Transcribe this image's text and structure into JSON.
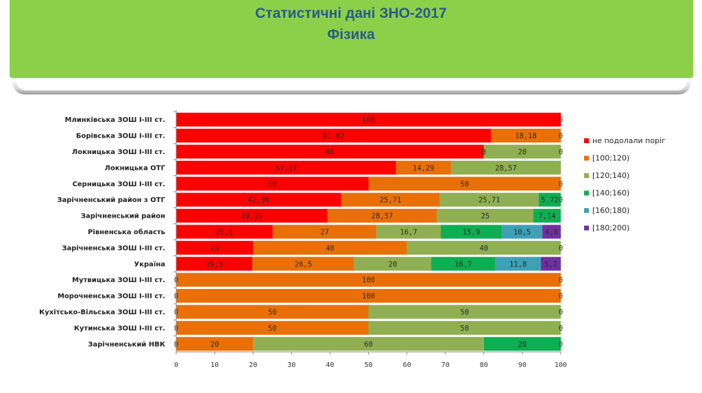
{
  "header": {
    "title_line1": "Статистичні дані  ЗНО-2017",
    "title_line2": "Фізика"
  },
  "chart_data": {
    "type": "bar",
    "orientation": "horizontal",
    "stacked": true,
    "title": "",
    "xlabel": "",
    "ylabel": "",
    "xlim": [
      0,
      100
    ],
    "x_ticks": [
      "0",
      "10",
      "20",
      "30",
      "40",
      "50",
      "60",
      "70",
      "80",
      "90",
      "100"
    ],
    "grid": false,
    "legend_position": "right",
    "categories": [
      "Млинківська  ЗОШ І-ІІІ ст.",
      "Борівська  ЗОШ І-ІІІ ст.",
      "Локницька  ЗОШ І-ІІІ ст.",
      "Локницька  ОТГ",
      "Серницька ЗОШ І-ІІІ ст.",
      "Зарічненський  район з ОТГ",
      "Зарічненський  район",
      "Рівненська  область",
      "Зарічненська  ЗОШ І-ІІІ ст.",
      "Україна",
      "Мутвицька  ЗОШ І-ІІІ ст.",
      "Морочненська  ЗОШ І-ІІІ ст.",
      "Кухітсько-Вільська  ЗОШ І-ІІІ ст.",
      "Кутинська  ЗОШ І-ІІІ ст.",
      "Зарічненський  НВК"
    ],
    "series": [
      {
        "name": "не подолали поріг",
        "color": "#ff0000",
        "values": [
          100,
          81.82,
          80,
          57.17,
          50,
          42.86,
          39.29,
          25.1,
          20,
          19.8,
          0,
          0,
          0,
          0,
          0
        ],
        "labels": [
          "100",
          "81,82",
          "80",
          "57,17",
          "50",
          "42,86",
          "39,29",
          "25,1",
          "20",
          "19,8",
          "0",
          "0",
          "0",
          "0",
          "0"
        ]
      },
      {
        "name": "[100;120)",
        "color": "#e8700a",
        "values": [
          0,
          18.18,
          0,
          14.29,
          50,
          25.71,
          28.57,
          27,
          40,
          26.5,
          100,
          100,
          50,
          50,
          20
        ],
        "labels": [
          "",
          "18,18",
          "0",
          "14,29",
          "50",
          "25,71",
          "28,57",
          "27",
          "40",
          "26,5",
          "100",
          "100",
          "50",
          "50",
          "20"
        ]
      },
      {
        "name": "[120;140)",
        "color": "#8faf52",
        "values": [
          0,
          0,
          20,
          28.57,
          0,
          25.71,
          25,
          16.7,
          40,
          20,
          0,
          0,
          50,
          50,
          60
        ],
        "labels": [
          "",
          "",
          "20",
          "28,57",
          "",
          "25,71",
          "25",
          "16,7",
          "40",
          "20",
          "",
          "",
          "50",
          "50",
          "60"
        ]
      },
      {
        "name": "[140;160)",
        "color": "#0fae52",
        "values": [
          0,
          0,
          0,
          0,
          0,
          5.72,
          7.14,
          15.9,
          0,
          16.7,
          0,
          0,
          0,
          0,
          20
        ],
        "labels": [
          "",
          "",
          "",
          "",
          "",
          "5,72",
          "7,14",
          "15,9",
          "",
          "16,7",
          "",
          "",
          "",
          "",
          "20"
        ]
      },
      {
        "name": "[160;180)",
        "color": "#3ea0b4",
        "values": [
          0,
          0,
          0,
          0,
          0,
          0,
          0,
          10.5,
          0,
          11.8,
          0,
          0,
          0,
          0,
          0
        ],
        "labels": [
          "",
          "",
          "",
          "",
          "",
          "",
          "",
          "10,5",
          "",
          "11,8",
          "",
          "",
          "",
          "",
          ""
        ]
      },
      {
        "name": "[180;200)",
        "color": "#7030a0",
        "values": [
          0,
          0,
          0,
          0,
          0,
          0,
          0,
          4.8,
          0,
          5.2,
          0,
          0,
          0,
          0,
          0
        ],
        "labels": [
          "",
          "",
          "",
          "",
          "",
          "",
          "",
          "4,8",
          "",
          "5,2",
          "",
          "",
          "",
          "",
          ""
        ]
      }
    ],
    "end_labels": [
      "0",
      "0",
      "0",
      "",
      "0",
      "0",
      "",
      "",
      "0",
      "",
      "0",
      "0",
      "0",
      "0",
      "0"
    ]
  }
}
